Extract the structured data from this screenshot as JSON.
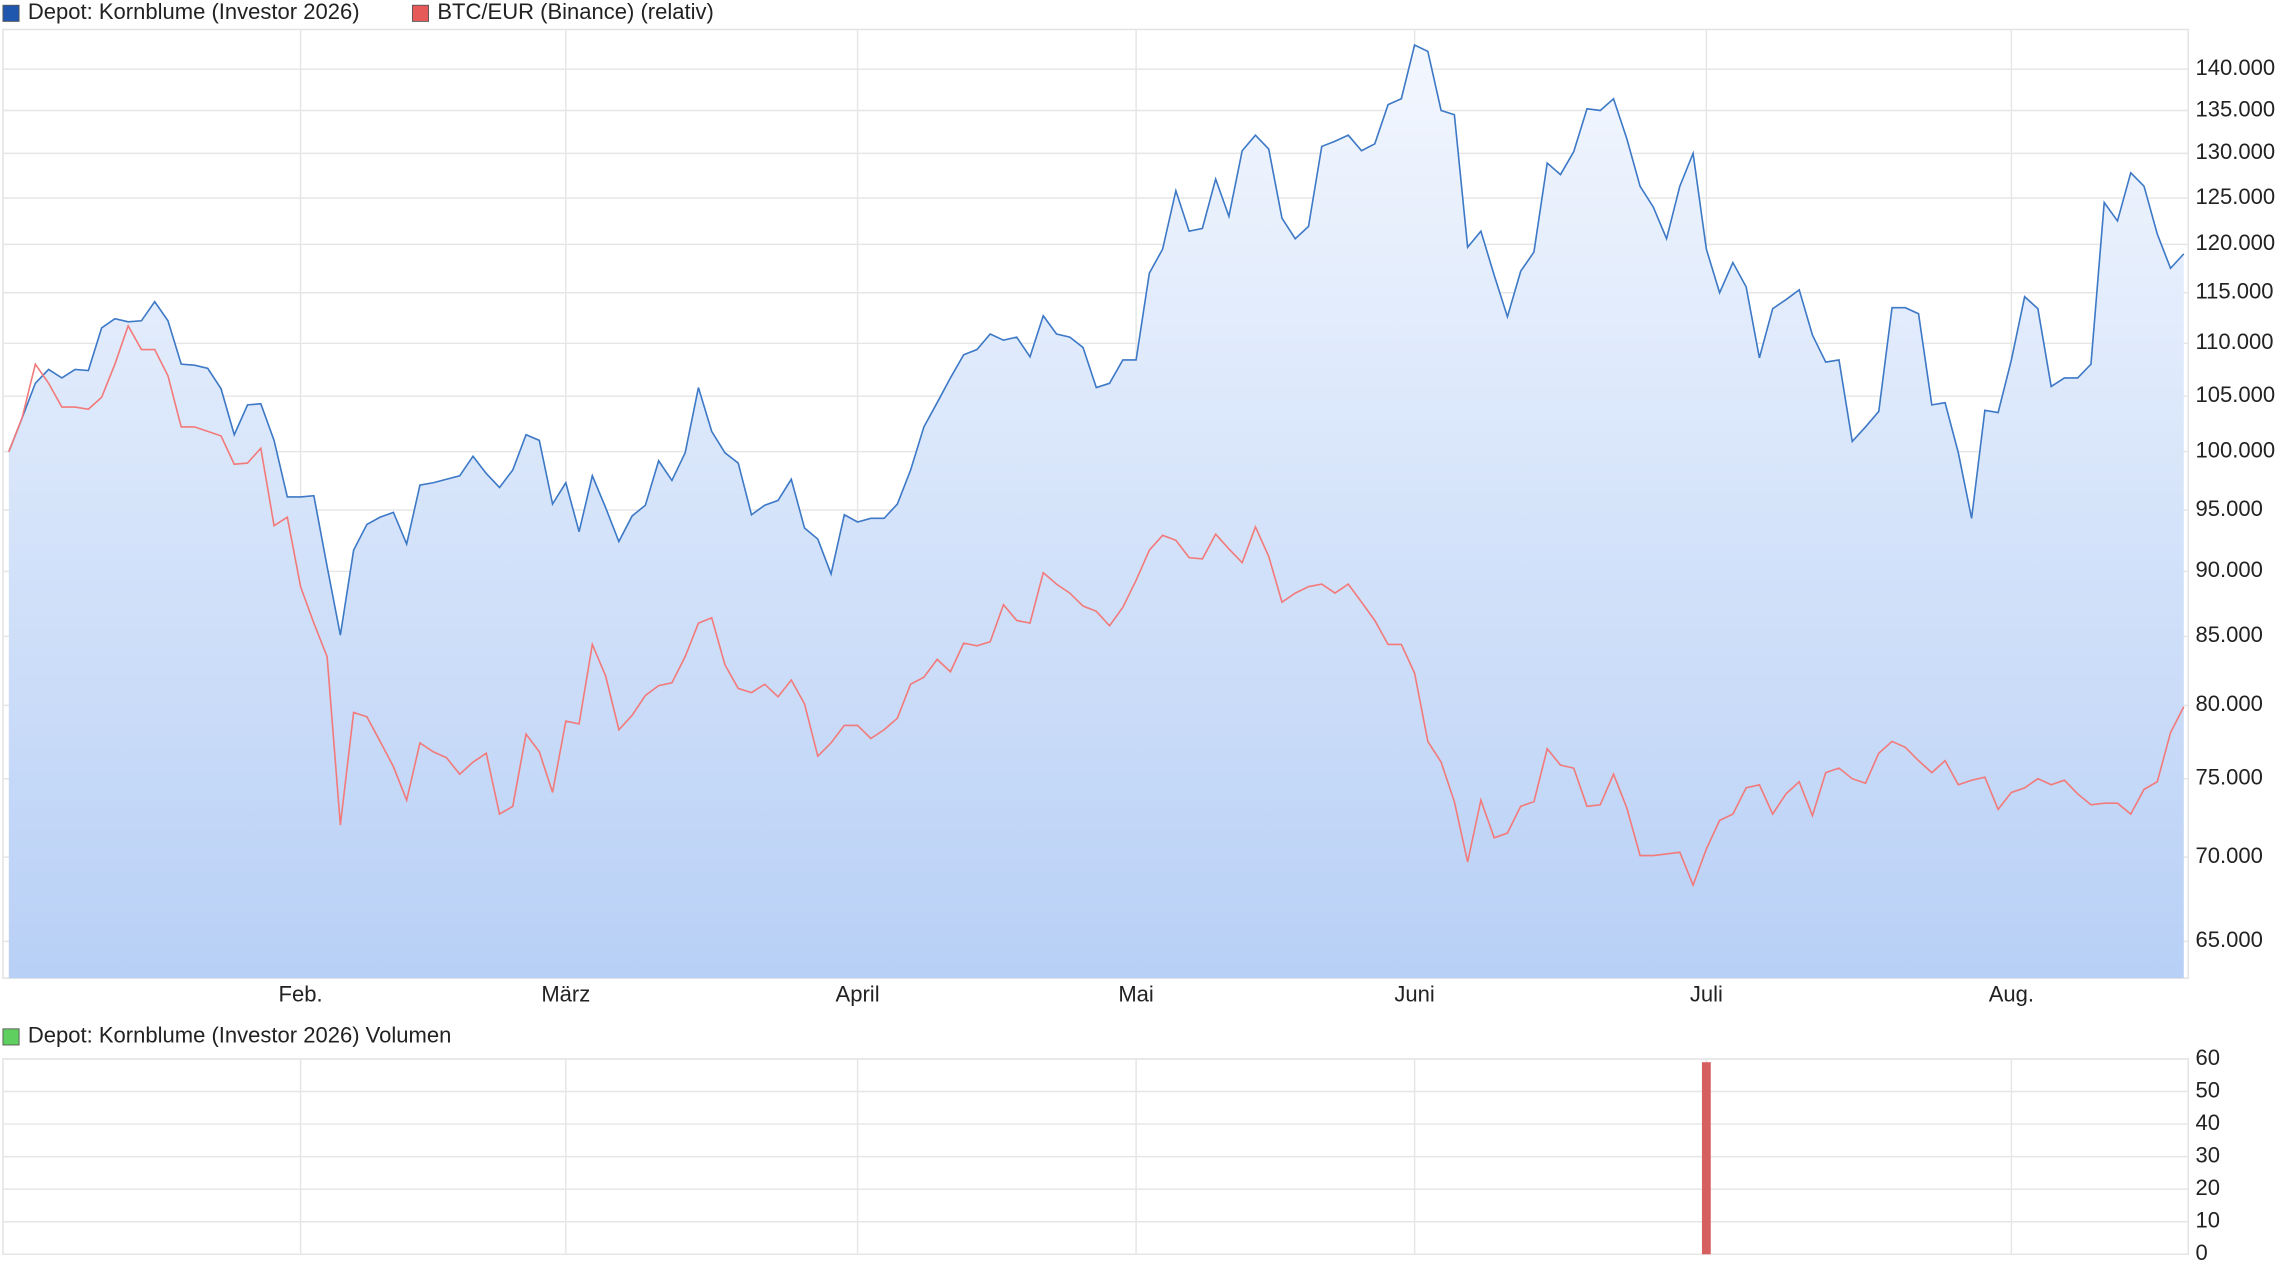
{
  "chart_data": [
    {
      "type": "line",
      "log_scale": true,
      "grid": true,
      "area_fill": true,
      "categories": [
        null,
        null,
        null,
        null,
        null,
        null,
        null,
        null,
        null,
        null,
        null,
        null,
        null,
        null,
        null,
        null,
        null,
        null,
        null,
        null,
        null,
        null,
        "Feb.",
        null,
        null,
        null,
        null,
        null,
        null,
        null,
        null,
        null,
        null,
        null,
        null,
        null,
        null,
        null,
        null,
        null,
        null,
        null,
        "März",
        null,
        null,
        null,
        null,
        null,
        null,
        null,
        null,
        null,
        null,
        null,
        null,
        null,
        null,
        null,
        null,
        null,
        null,
        null,
        null,
        null,
        "April",
        null,
        null,
        null,
        null,
        null,
        null,
        null,
        null,
        null,
        null,
        null,
        null,
        null,
        null,
        null,
        null,
        null,
        null,
        null,
        null,
        "Mai",
        null,
        null,
        null,
        null,
        null,
        null,
        null,
        null,
        null,
        null,
        null,
        null,
        null,
        null,
        null,
        null,
        null,
        null,
        null,
        null,
        "Juni",
        null,
        null,
        null,
        null,
        null,
        null,
        null,
        null,
        null,
        null,
        null,
        null,
        null,
        null,
        null,
        null,
        null,
        null,
        null,
        null,
        null,
        "Juli",
        null,
        null,
        null,
        null,
        null,
        null,
        null,
        null,
        null,
        null,
        null,
        null,
        null,
        null,
        null,
        null,
        null,
        null,
        null,
        null,
        null,
        null,
        "Aug.",
        null,
        null,
        null,
        null,
        null,
        null,
        null,
        null,
        null,
        null,
        null,
        null,
        null
      ],
      "series": [
        {
          "name": "Depot: Kornblume (Investor 2026)",
          "color": "#3d79c6",
          "legend_color": "#1f56ae",
          "values": [
            100000,
            103000,
            106200,
            107500,
            106700,
            107500,
            107400,
            111500,
            112400,
            112100,
            112200,
            114100,
            112200,
            108000,
            107900,
            107600,
            105700,
            101500,
            104200,
            104300,
            101000,
            96100,
            96100,
            96200,
            90400,
            85100,
            91700,
            93800,
            94400,
            94800,
            92200,
            97100,
            97300,
            97600,
            97900,
            99600,
            98100,
            96900,
            98400,
            101500,
            101000,
            95500,
            97300,
            93200,
            97900,
            95200,
            92400,
            94500,
            95400,
            99200,
            97500,
            99900,
            105800,
            101800,
            99900,
            99000,
            94600,
            95400,
            95800,
            97600,
            93500,
            92600,
            89800,
            94600,
            94000,
            94300,
            94300,
            95500,
            98400,
            102200,
            104400,
            106700,
            108900,
            109400,
            110900,
            110300,
            110600,
            108700,
            112700,
            110900,
            110600,
            109600,
            105800,
            106200,
            108400,
            108400,
            117000,
            119500,
            125800,
            121400,
            121700,
            127100,
            123000,
            130300,
            132100,
            130500,
            122800,
            120600,
            121900,
            130800,
            131400,
            132100,
            130300,
            131100,
            135700,
            136400,
            143000,
            142200,
            135000,
            134500,
            119700,
            121400,
            116800,
            112600,
            117200,
            119200,
            128900,
            127600,
            130200,
            135200,
            135000,
            136400,
            131700,
            126300,
            124000,
            120600,
            126300,
            130000,
            119500,
            115000,
            118100,
            115600,
            108600,
            113400,
            114300,
            115300,
            110800,
            108200,
            108400,
            100900,
            102200,
            103600,
            113500,
            113500,
            112900,
            104200,
            104400,
            99900,
            94300,
            103700,
            103500,
            108400,
            114600,
            113400,
            105900,
            106700,
            106700,
            108000,
            124500,
            122500,
            127800,
            126300,
            121100,
            117500,
            119000
          ]
        },
        {
          "name": "BTC/EUR (Binance) (relativ)",
          "color": "#f27a7a",
          "legend_color": "#e65a5a",
          "values": [
            100000,
            103000,
            108000,
            106200,
            104000,
            104000,
            103800,
            104900,
            108000,
            111700,
            109400,
            109400,
            106900,
            102200,
            102200,
            101800,
            101400,
            98900,
            99000,
            100300,
            93700,
            94400,
            88800,
            86000,
            83500,
            72000,
            79500,
            79200,
            77500,
            75800,
            73600,
            77400,
            76800,
            76400,
            75300,
            76100,
            76700,
            72700,
            73200,
            78000,
            76800,
            74100,
            78900,
            78700,
            84400,
            82100,
            78300,
            79300,
            80700,
            81400,
            81600,
            83500,
            86000,
            86400,
            82900,
            81200,
            80900,
            81500,
            80600,
            81800,
            80100,
            76500,
            77400,
            78600,
            78600,
            77700,
            78300,
            79100,
            81500,
            82000,
            83300,
            82400,
            84500,
            84300,
            84600,
            87400,
            86200,
            86000,
            89900,
            89000,
            88300,
            87300,
            86900,
            85800,
            87200,
            89300,
            91700,
            92900,
            92500,
            91100,
            91000,
            93000,
            91800,
            90700,
            93600,
            91200,
            87600,
            88300,
            88800,
            89000,
            88300,
            89000,
            87600,
            86200,
            84400,
            84400,
            82300,
            77500,
            76100,
            73500,
            69700,
            73600,
            71200,
            71500,
            73200,
            73500,
            77000,
            75900,
            75700,
            73200,
            73300,
            75300,
            73100,
            70100,
            70100,
            70200,
            70300,
            68300,
            70500,
            72300,
            72700,
            74400,
            74600,
            72700,
            74000,
            74800,
            72600,
            75400,
            75700,
            75000,
            74700,
            76700,
            77500,
            77100,
            76200,
            75400,
            76200,
            74600,
            74900,
            75100,
            73000,
            74100,
            74400,
            75000,
            74600,
            74900,
            74000,
            73300,
            73400,
            73400,
            72700,
            74300,
            74800,
            78100,
            79900
          ]
        }
      ],
      "ylim": [
        62930,
        144970
      ],
      "yticks": [
        {
          "value": 65000,
          "label": "65.000"
        },
        {
          "value": 70000,
          "label": "70.000"
        },
        {
          "value": 75000,
          "label": "75.000"
        },
        {
          "value": 80000,
          "label": "80.000"
        },
        {
          "value": 85000,
          "label": "85.000"
        },
        {
          "value": 90000,
          "label": "90.000"
        },
        {
          "value": 95000,
          "label": "95.000"
        },
        {
          "value": 100000,
          "label": "100.000"
        },
        {
          "value": 105000,
          "label": "105.000"
        },
        {
          "value": 110000,
          "label": "110.000"
        },
        {
          "value": 115000,
          "label": "115.000"
        },
        {
          "value": 120000,
          "label": "120.000"
        },
        {
          "value": 125000,
          "label": "125.000"
        },
        {
          "value": 130000,
          "label": "130.000"
        },
        {
          "value": 135000,
          "label": "135.000"
        },
        {
          "value": 140000,
          "label": "140.000"
        }
      ]
    },
    {
      "type": "bar",
      "grid": true,
      "series": [
        {
          "name": "Depot: Kornblume (Investor 2026) Volumen",
          "color": "#d65f5f",
          "legend_color": "#5fcf5f",
          "values": [
            0,
            0,
            0,
            0,
            0,
            0,
            0,
            0,
            0,
            0,
            0,
            0,
            0,
            0,
            0,
            0,
            0,
            0,
            0,
            0,
            0,
            0,
            0,
            0,
            0,
            0,
            0,
            0,
            0,
            0,
            0,
            0,
            0,
            0,
            0,
            0,
            0,
            0,
            0,
            0,
            0,
            0,
            0,
            0,
            0,
            0,
            0,
            0,
            0,
            0,
            0,
            0,
            0,
            0,
            0,
            0,
            0,
            0,
            0,
            0,
            0,
            0,
            0,
            0,
            0,
            0,
            0,
            0,
            0,
            0,
            0,
            0,
            0,
            0,
            0,
            0,
            0,
            0,
            0,
            0,
            0,
            0,
            0,
            0,
            0,
            0,
            0,
            0,
            0,
            0,
            0,
            0,
            0,
            0,
            0,
            0,
            0,
            0,
            0,
            0,
            0,
            0,
            0,
            0,
            0,
            0,
            0,
            0,
            0,
            0,
            0,
            0,
            0,
            0,
            0,
            0,
            0,
            0,
            0,
            0,
            0,
            0,
            0,
            0,
            0,
            0,
            0,
            0,
            59,
            0,
            0,
            0,
            0,
            0,
            0,
            0,
            0,
            0,
            0,
            0,
            0,
            0,
            0,
            0,
            0,
            0,
            0,
            0,
            0,
            0,
            0,
            0,
            0,
            0,
            0,
            0,
            0,
            0,
            0,
            0,
            0,
            0,
            0,
            0,
            0
          ]
        }
      ],
      "ylim": [
        0,
        60
      ],
      "yticks": [
        0,
        10,
        20,
        30,
        40,
        50,
        60
      ]
    }
  ]
}
